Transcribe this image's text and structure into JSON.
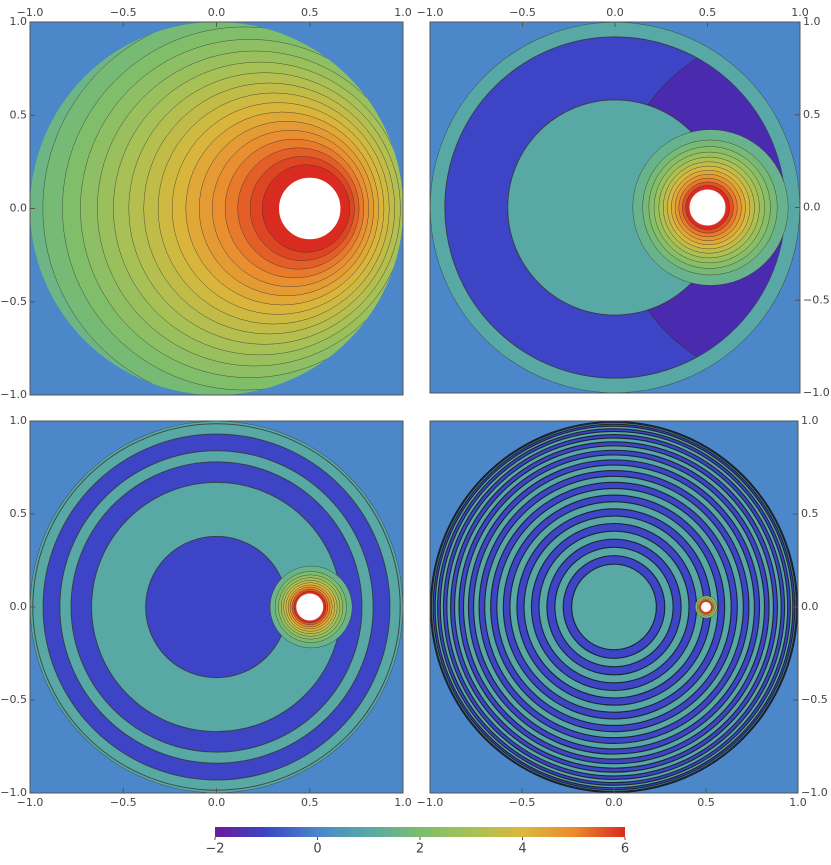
{
  "chart_data": [
    {
      "type": "contour",
      "xlim": [
        -1,
        1
      ],
      "ylim": [
        -1,
        1
      ],
      "x_axis_side": "top",
      "y_axis_side": "left",
      "xticks": [
        {
          "value": -1,
          "label": "−1.0"
        },
        {
          "value": -0.5,
          "label": "−0.5"
        },
        {
          "value": 0,
          "label": "0.0"
        },
        {
          "value": 0.5,
          "label": "0.5"
        },
        {
          "value": 1,
          "label": "1.0"
        }
      ],
      "yticks": [
        {
          "value": -1,
          "label": "−1.0"
        },
        {
          "value": -0.5,
          "label": "−0.5"
        },
        {
          "value": 0,
          "label": "0.0"
        },
        {
          "value": 0.5,
          "label": "0.5"
        },
        {
          "value": 1,
          "label": "1.0"
        }
      ]
    },
    {
      "type": "contour",
      "xlim": [
        -1,
        1
      ],
      "ylim": [
        -1,
        1
      ],
      "x_axis_side": "top",
      "y_axis_side": "right",
      "xticks": [
        {
          "value": -1,
          "label": "−1.0"
        },
        {
          "value": -0.5,
          "label": "−0.5"
        },
        {
          "value": 0,
          "label": "0.0"
        },
        {
          "value": 0.5,
          "label": "0.5"
        },
        {
          "value": 1,
          "label": "1.0"
        }
      ],
      "yticks": [
        {
          "value": -1,
          "label": "−1.0"
        },
        {
          "value": -0.5,
          "label": "−0.5"
        },
        {
          "value": 0,
          "label": "0.0"
        },
        {
          "value": 0.5,
          "label": "0.5"
        },
        {
          "value": 1,
          "label": "1.0"
        }
      ]
    },
    {
      "type": "contour",
      "xlim": [
        -1,
        1
      ],
      "ylim": [
        -1,
        1
      ],
      "x_axis_side": "bottom",
      "y_axis_side": "left",
      "xticks": [
        {
          "value": -1,
          "label": "−1.0"
        },
        {
          "value": -0.5,
          "label": "−0.5"
        },
        {
          "value": 0,
          "label": "0.0"
        },
        {
          "value": 0.5,
          "label": "0.5"
        },
        {
          "value": 1,
          "label": "1.0"
        }
      ],
      "yticks": [
        {
          "value": -1,
          "label": "−1.0"
        },
        {
          "value": -0.5,
          "label": "−0.5"
        },
        {
          "value": 0,
          "label": "0.0"
        },
        {
          "value": 0.5,
          "label": "0.5"
        },
        {
          "value": 1,
          "label": "1.0"
        }
      ]
    },
    {
      "type": "contour",
      "xlim": [
        -1,
        1
      ],
      "ylim": [
        -1,
        1
      ],
      "x_axis_side": "bottom",
      "y_axis_side": "right",
      "xticks": [
        {
          "value": -1,
          "label": "−1.0"
        },
        {
          "value": -0.5,
          "label": "−0.5"
        },
        {
          "value": 0,
          "label": "0.0"
        },
        {
          "value": 0.5,
          "label": "0.5"
        },
        {
          "value": 1,
          "label": "1.0"
        }
      ],
      "yticks": [
        {
          "value": -1,
          "label": "−1.0"
        },
        {
          "value": -0.5,
          "label": "−0.5"
        },
        {
          "value": 0,
          "label": "0.0"
        },
        {
          "value": 0.5,
          "label": "0.5"
        },
        {
          "value": 1,
          "label": "1.0"
        }
      ]
    }
  ],
  "colorbar": {
    "lim": [
      -2,
      6
    ],
    "ticks": [
      {
        "value": -2,
        "label": "−2"
      },
      0,
      2,
      4,
      6
    ],
    "colormap": [
      "#6a1b9a",
      "#3d45c6",
      "#4b87c9",
      "#58a9a5",
      "#7bbd6e",
      "#a8c155",
      "#d9b83c",
      "#ec8a2e",
      "#d92b1f"
    ]
  }
}
